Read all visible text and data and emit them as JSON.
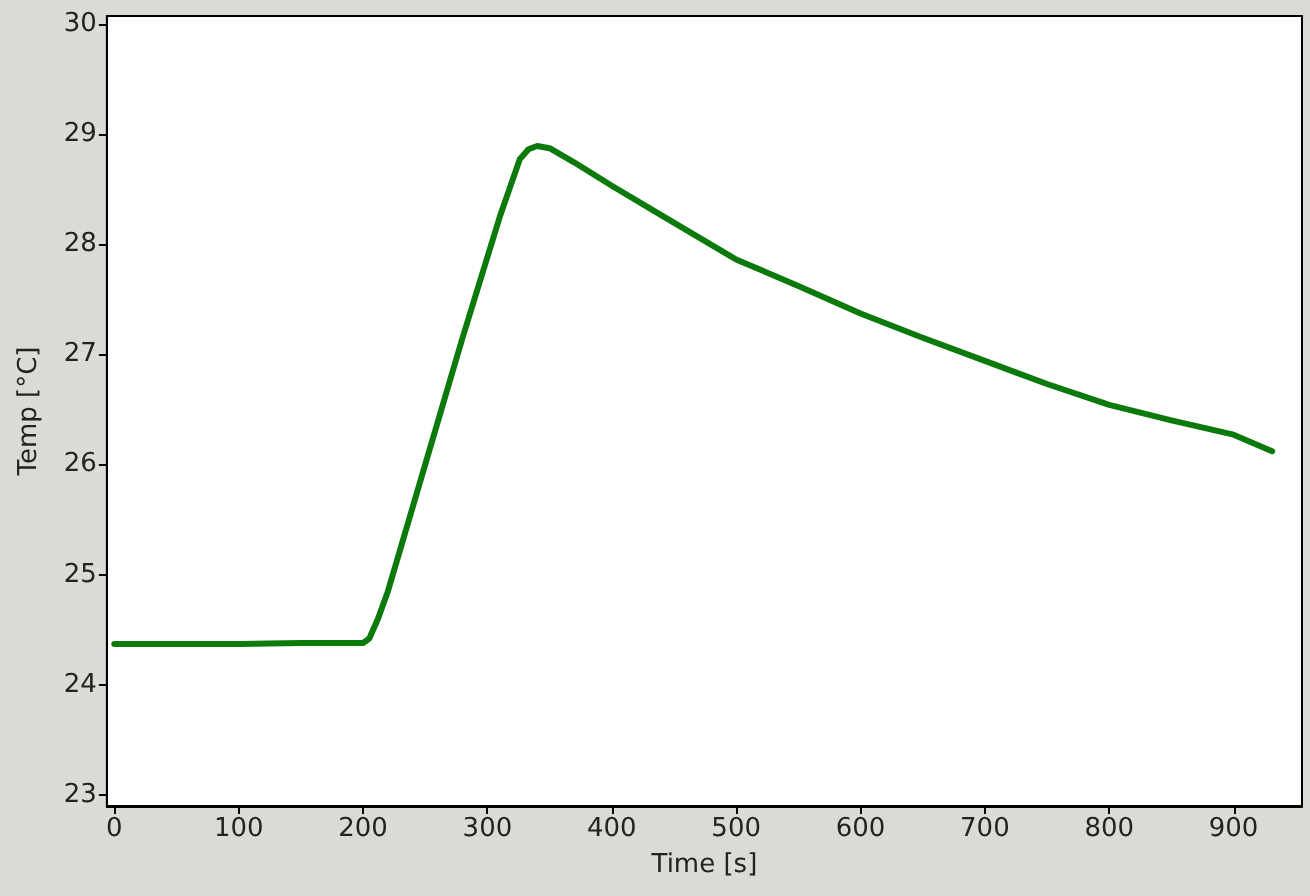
{
  "chart_data": {
    "type": "line",
    "xlabel": "Time [s]",
    "ylabel": "Temp [°C]",
    "x": [
      0,
      50,
      100,
      150,
      200,
      205,
      212,
      220,
      250,
      280,
      310,
      326,
      333,
      340,
      350,
      370,
      400,
      440,
      500,
      550,
      600,
      650,
      700,
      750,
      800,
      850,
      900,
      931
    ],
    "series": [
      {
        "color": "#0b7a0b",
        "values": [
          24.37,
          24.37,
          24.37,
          24.38,
          24.38,
          24.42,
          24.6,
          24.85,
          26.0,
          27.15,
          28.25,
          28.77,
          28.86,
          28.89,
          28.87,
          28.74,
          28.53,
          28.26,
          27.86,
          27.62,
          27.37,
          27.15,
          26.94,
          26.73,
          26.54,
          26.4,
          26.27,
          26.12
        ]
      }
    ],
    "xlim": [
      -6,
      955
    ],
    "ylim": [
      22.9,
      30.07
    ],
    "xticks": [
      0,
      100,
      200,
      300,
      400,
      500,
      600,
      700,
      800,
      900
    ],
    "yticks": [
      23,
      24,
      25,
      26,
      27,
      28,
      29,
      30
    ],
    "grid": false,
    "marker": "none",
    "line_style": "solid"
  }
}
